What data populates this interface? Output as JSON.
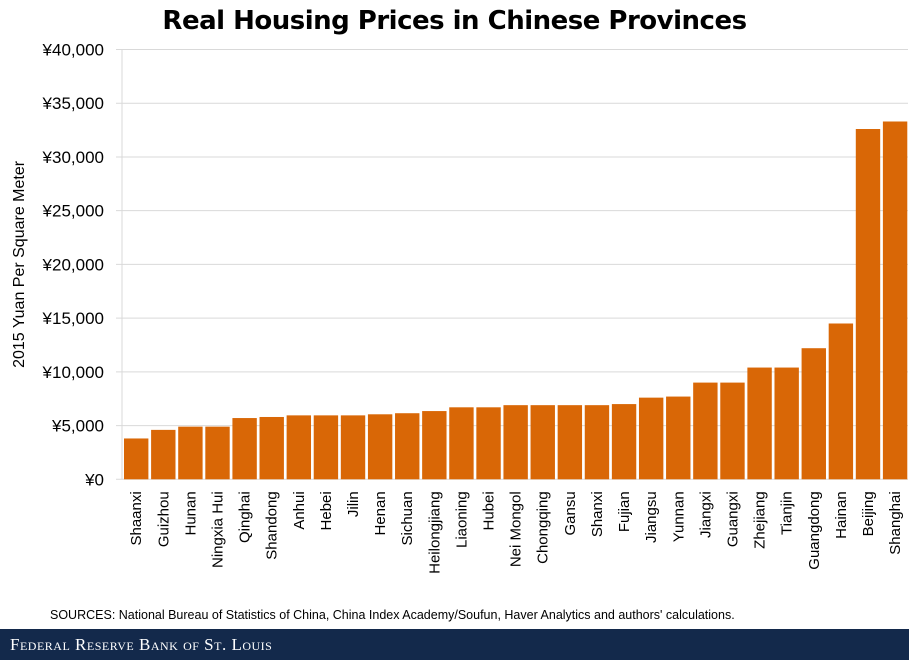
{
  "chart_data": {
    "type": "bar",
    "title": "Real Housing Prices in Chinese Provinces",
    "xlabel": "",
    "ylabel": "2015 Yuan Per Square Meter",
    "ylim": [
      0,
      40000
    ],
    "yticks": [
      0,
      5000,
      10000,
      15000,
      20000,
      25000,
      30000,
      35000,
      40000
    ],
    "ytick_labels": [
      "¥0",
      "¥5,000",
      "¥10,000",
      "¥15,000",
      "¥20,000",
      "¥25,000",
      "¥30,000",
      "¥35,000",
      "¥40,000"
    ],
    "grid": true,
    "bar_color": "#d96706",
    "categories": [
      "Shaanxi",
      "Guizhou",
      "Hunan",
      "Ningxia Hui",
      "Qinghai",
      "Shandong",
      "Anhui",
      "Hebei",
      "Jilin",
      "Henan",
      "Sichuan",
      "Heilongjiang",
      "Liaoning",
      "Hubei",
      "Nei Mongol",
      "Chongqing",
      "Gansu",
      "Shanxi",
      "Fujian",
      "Jiangsu",
      "Yunnan",
      "Jiangxi",
      "Guangxi",
      "Zhejiang",
      "Tianjin",
      "Guangdong",
      "Hainan",
      "Beijing",
      "Shanghai"
    ],
    "values": [
      3800,
      4600,
      4900,
      4900,
      5700,
      5800,
      5950,
      5950,
      5950,
      6050,
      6150,
      6350,
      6700,
      6700,
      6900,
      6900,
      6900,
      6900,
      7000,
      7600,
      7700,
      9000,
      9000,
      10400,
      10400,
      12200,
      14500,
      32600,
      33300
    ]
  },
  "source": "SOURCES: National Bureau of Statistics of China, China Index Academy/Soufun,  Haver Analytics and authors' calculations.",
  "footer": {
    "brand": "Federal Reserve Bank of St. Louis",
    "background": "#13294b"
  }
}
